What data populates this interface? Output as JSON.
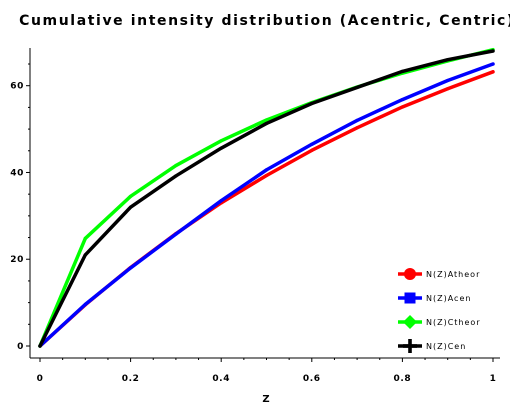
{
  "chart_data": {
    "type": "line",
    "title": "Cumulative intensity distribution (Acentric, Centric)",
    "xlabel": "Z",
    "ylabel": "",
    "xlim": [
      0,
      1
    ],
    "ylim": [
      0,
      68
    ],
    "x_ticks": [
      "0",
      "0.2",
      "0.4",
      "0.6",
      "0.8",
      "1"
    ],
    "y_ticks": [
      "0",
      "20",
      "40",
      "60"
    ],
    "legend_position": "bottom-right",
    "grid": false,
    "x": [
      0,
      0.1,
      0.2,
      0.3,
      0.4,
      0.5,
      0.6,
      0.7,
      0.8,
      0.9,
      1.0
    ],
    "series": [
      {
        "name": "N(Z)Atheor",
        "color": "#ff0000",
        "marker": "circle",
        "values": [
          0,
          9.5,
          18.1,
          25.9,
          33.0,
          39.3,
          45.1,
          50.3,
          55.1,
          59.3,
          63.2
        ]
      },
      {
        "name": "N(Z)Acen",
        "color": "#0000ff",
        "marker": "square",
        "values": [
          0,
          9.6,
          18.0,
          25.8,
          33.5,
          40.6,
          46.5,
          52.0,
          56.8,
          61.2,
          65.0
        ]
      },
      {
        "name": "N(Z)Ctheor",
        "color": "#00ff00",
        "marker": "diamond",
        "values": [
          0,
          24.8,
          34.5,
          41.6,
          47.3,
          52.1,
          56.1,
          59.7,
          62.9,
          65.7,
          68.3
        ]
      },
      {
        "name": "N(Z)Cen",
        "color": "#000000",
        "marker": "plus",
        "values": [
          0,
          21.0,
          32.0,
          39.2,
          45.6,
          51.3,
          55.9,
          59.6,
          63.3,
          66.0,
          68.0
        ]
      }
    ]
  }
}
